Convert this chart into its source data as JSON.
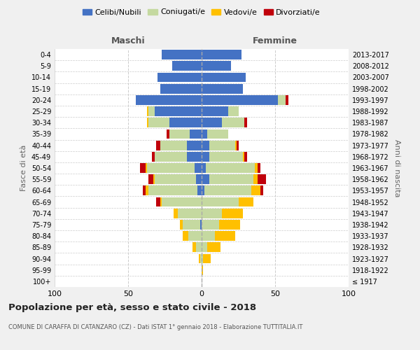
{
  "age_groups": [
    "100+",
    "95-99",
    "90-94",
    "85-89",
    "80-84",
    "75-79",
    "70-74",
    "65-69",
    "60-64",
    "55-59",
    "50-54",
    "45-49",
    "40-44",
    "35-39",
    "30-34",
    "25-29",
    "20-24",
    "15-19",
    "10-14",
    "5-9",
    "0-4"
  ],
  "birth_years": [
    "≤ 1917",
    "1918-1922",
    "1923-1927",
    "1928-1932",
    "1933-1937",
    "1938-1942",
    "1943-1947",
    "1948-1952",
    "1953-1957",
    "1958-1962",
    "1963-1967",
    "1968-1972",
    "1973-1977",
    "1978-1982",
    "1983-1987",
    "1988-1992",
    "1993-1997",
    "1998-2002",
    "2003-2007",
    "2008-2012",
    "2013-2017"
  ],
  "maschi": {
    "celibi": [
      0,
      0,
      0,
      0,
      0,
      1,
      0,
      0,
      3,
      4,
      5,
      10,
      10,
      8,
      22,
      32,
      45,
      28,
      30,
      20,
      27
    ],
    "coniugati": [
      0,
      0,
      1,
      4,
      9,
      12,
      16,
      27,
      33,
      28,
      32,
      22,
      18,
      14,
      14,
      4,
      0,
      0,
      0,
      0,
      0
    ],
    "vedovi": [
      0,
      0,
      1,
      2,
      4,
      2,
      3,
      1,
      2,
      1,
      1,
      0,
      0,
      0,
      1,
      1,
      0,
      0,
      0,
      0,
      0
    ],
    "divorziati": [
      0,
      0,
      0,
      0,
      0,
      0,
      0,
      3,
      2,
      3,
      4,
      2,
      3,
      2,
      0,
      0,
      0,
      0,
      0,
      0,
      0
    ]
  },
  "femmine": {
    "nubili": [
      0,
      0,
      0,
      0,
      0,
      0,
      0,
      0,
      2,
      5,
      3,
      5,
      5,
      4,
      14,
      18,
      52,
      28,
      30,
      20,
      27
    ],
    "coniugate": [
      0,
      0,
      1,
      4,
      9,
      12,
      14,
      25,
      32,
      30,
      33,
      23,
      18,
      14,
      15,
      7,
      5,
      0,
      0,
      0,
      0
    ],
    "vedove": [
      0,
      1,
      5,
      9,
      14,
      14,
      14,
      10,
      6,
      3,
      2,
      1,
      1,
      0,
      0,
      0,
      0,
      0,
      0,
      0,
      0
    ],
    "divorziate": [
      0,
      0,
      0,
      0,
      0,
      0,
      0,
      0,
      2,
      6,
      2,
      2,
      1,
      0,
      2,
      0,
      2,
      0,
      0,
      0,
      0
    ]
  },
  "colors": {
    "celibi_nubili": "#4472c4",
    "coniugati": "#c5d9a0",
    "vedovi": "#ffc000",
    "divorziati": "#c0000b"
  },
  "title": "Popolazione per età, sesso e stato civile - 2018",
  "subtitle": "COMUNE DI CARAFFA DI CATANZARO (CZ) - Dati ISTAT 1° gennaio 2018 - Elaborazione TUTTITALIA.IT",
  "xlabel_left": "Maschi",
  "xlabel_right": "Femmine",
  "ylabel_left": "Fasce di età",
  "ylabel_right": "Anni di nascita",
  "xlim": 100,
  "bg_color": "#f0f0f0",
  "plot_bg": "#ffffff",
  "legend_labels": [
    "Celibi/Nubili",
    "Coniugati/e",
    "Vedovi/e",
    "Divorziati/e"
  ]
}
